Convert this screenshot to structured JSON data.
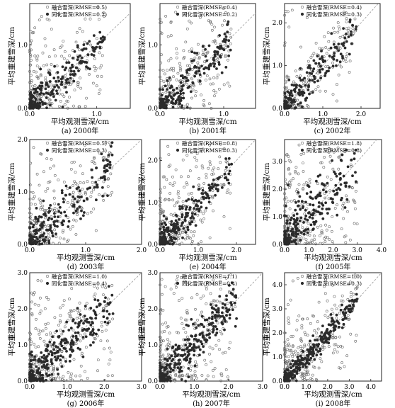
{
  "figure": {
    "xlabel": "平均观测雪深/cm",
    "ylabel": "平均重建雪深/cm"
  },
  "chart_data": [
    {
      "type": "scatter",
      "caption": "(a) 2000年",
      "xlim": [
        0,
        1.5
      ],
      "ylim": [
        0,
        1.65
      ],
      "xticks": [
        "0.0",
        "1.0"
      ],
      "yticks": [
        "0.0",
        "1.0"
      ],
      "series": [
        {
          "name": "融合雪深(RMSE=0.5)",
          "style": "open-circle",
          "count": 230
        },
        {
          "name": "同化雪深(RMSE=0.2)",
          "style": "filled-circle",
          "count": 200
        }
      ],
      "diagonal": true
    },
    {
      "type": "scatter",
      "caption": "(b) 2001年",
      "xlim": [
        0,
        1.5
      ],
      "ylim": [
        0,
        1.65
      ],
      "xticks": [
        "0.0",
        "1.0"
      ],
      "yticks": [
        "0.0",
        "1.0"
      ],
      "series": [
        {
          "name": "融合雪深(RMSE=0.4)",
          "style": "open-circle",
          "count": 230
        },
        {
          "name": "同化雪深(RMSE=0.2)",
          "style": "filled-circle",
          "count": 200
        }
      ],
      "diagonal": true
    },
    {
      "type": "scatter",
      "caption": "(c) 2002年",
      "xlim": [
        0,
        2.5
      ],
      "ylim": [
        0,
        2.45
      ],
      "xticks": [
        "0.0",
        "1.0",
        "2.0"
      ],
      "yticks": [
        "0.0",
        "1.0",
        "2.0"
      ],
      "series": [
        {
          "name": "融合雪深(RMSE=0.4)",
          "style": "open-circle",
          "count": 200
        },
        {
          "name": "同化雪深(RMSE=0.3)",
          "style": "filled-circle",
          "count": 180
        }
      ],
      "diagonal": true
    },
    {
      "type": "scatter",
      "caption": "(d) 2003年",
      "xlim": [
        0,
        2.0
      ],
      "ylim": [
        0,
        2.0
      ],
      "xticks": [
        "0.0",
        "1.0",
        "2.0"
      ],
      "yticks": [
        "0.0",
        "1.0",
        "2.0"
      ],
      "series": [
        {
          "name": "融合雪深(RMSE=0.5)",
          "style": "open-circle",
          "count": 250
        },
        {
          "name": "同化雪深(RMSE=0.3)",
          "style": "filled-circle",
          "count": 200
        }
      ],
      "diagonal": true
    },
    {
      "type": "scatter",
      "caption": "(e) 2004年",
      "xlim": [
        0,
        2.5
      ],
      "ylim": [
        0,
        2.5
      ],
      "xticks": [
        "0.0",
        "1.0",
        "2.0"
      ],
      "yticks": [
        "0.0",
        "1.0",
        "2.0"
      ],
      "series": [
        {
          "name": "融合雪深(RMSE=0.8)",
          "style": "open-circle",
          "count": 250
        },
        {
          "name": "同化雪深(RMSE=0.3)",
          "style": "filled-circle",
          "count": 220
        }
      ],
      "diagonal": true
    },
    {
      "type": "scatter",
      "caption": "(f) 2005年",
      "xlim": [
        0,
        4.0
      ],
      "ylim": [
        0,
        3.8
      ],
      "xticks": [
        "0.0",
        "1.0",
        "2.0",
        "3.0",
        "4.0"
      ],
      "yticks": [
        "0.0",
        "1.0",
        "2.0",
        "3.0"
      ],
      "series": [
        {
          "name": "融合雪深(RMSE=1.8)",
          "style": "open-circle",
          "count": 260
        },
        {
          "name": "同化雪深(RMSE=0.8)",
          "style": "filled-circle",
          "count": 220
        }
      ],
      "diagonal": true
    },
    {
      "type": "scatter",
      "caption": "(g) 2006年",
      "xlim": [
        0,
        3.0
      ],
      "ylim": [
        0,
        3.0
      ],
      "xticks": [
        "0.0",
        "1.0",
        "2.0",
        "3.0"
      ],
      "yticks": [
        "0.0",
        "1.0",
        "2.0",
        "3.0"
      ],
      "series": [
        {
          "name": "融合雪深(RMSE=1.0)",
          "style": "open-circle",
          "count": 280
        },
        {
          "name": "同化雪深(RMSE=0.4)",
          "style": "filled-circle",
          "count": 280
        }
      ],
      "diagonal": true
    },
    {
      "type": "scatter",
      "caption": "(h) 2007年",
      "xlim": [
        0,
        3.0
      ],
      "ylim": [
        0,
        3.0
      ],
      "xticks": [
        "0.0",
        "1.0",
        "2.0",
        "3.0"
      ],
      "yticks": [
        "0.0",
        "1.0",
        "2.0",
        "3.0"
      ],
      "series": [
        {
          "name": "融合雪深(RMSE=1.1)",
          "style": "open-circle",
          "count": 280
        },
        {
          "name": "同化雪深(RMSE=0.4)",
          "style": "filled-circle",
          "count": 280
        }
      ],
      "diagonal": true
    },
    {
      "type": "scatter",
      "caption": "(i) 2008年",
      "xlim": [
        0,
        4.5
      ],
      "ylim": [
        0,
        4.5
      ],
      "xticks": [
        "0.0",
        "1.0",
        "2.0",
        "3.0",
        "4.0"
      ],
      "yticks": [
        "0.0",
        "1.0",
        "2.0",
        "3.0",
        "4.0"
      ],
      "series": [
        {
          "name": "融合雪深(RMSE=1.0)",
          "style": "open-circle",
          "count": 280
        },
        {
          "name": "同化雪深(RMSE=0.3)",
          "style": "filled-circle",
          "count": 280
        }
      ],
      "diagonal": true
    }
  ]
}
